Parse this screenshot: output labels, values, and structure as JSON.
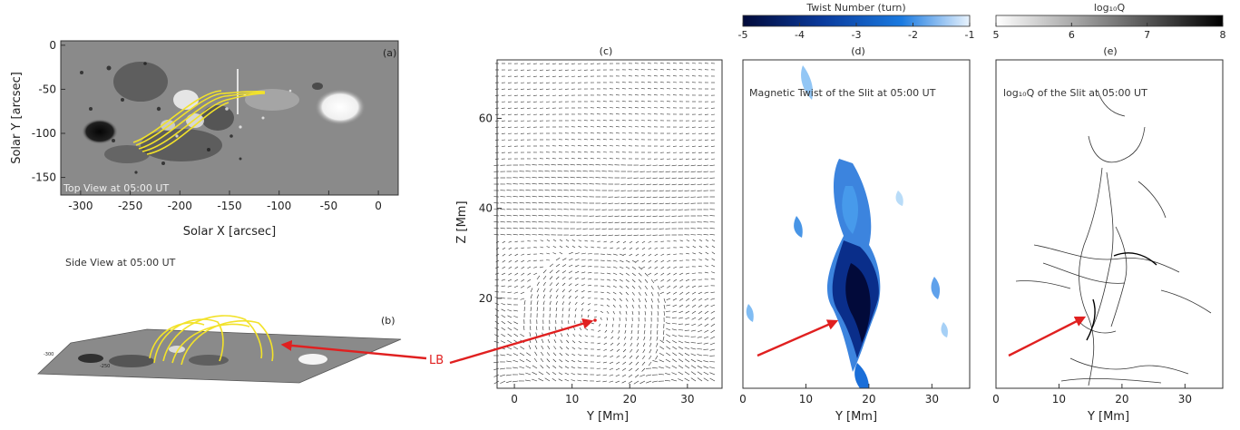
{
  "panel_a": {
    "letter": "(a)",
    "xlabel": "Solar X [arcsec]",
    "ylabel": "Solar Y [arcsec]",
    "caption": "Top View at 05:00 UT",
    "x_ticks": [
      "-300",
      "-250",
      "-200",
      "-150",
      "-100",
      "-50",
      "0"
    ],
    "y_ticks": [
      "0",
      "-50",
      "-100",
      "-150"
    ],
    "xlim": [
      -320,
      20
    ],
    "ylim": [
      -170,
      5
    ],
    "colors": {
      "loops": "#f2e22a",
      "slit": "#ffffff",
      "background": "#8a8a8a"
    }
  },
  "panel_b": {
    "letter": "(b)",
    "caption": "Side View at 05:00 UT",
    "label": "LB",
    "label_color": "#e02020"
  },
  "panel_c": {
    "letter": "(c)",
    "xlabel": "Y [Mm]",
    "ylabel": "Z [Mm]",
    "x_ticks": [
      "0",
      "10",
      "20",
      "30"
    ],
    "y_ticks": [
      "20",
      "40",
      "60"
    ],
    "xlim": [
      -3,
      36
    ],
    "ylim": [
      0,
      73
    ]
  },
  "panel_d": {
    "letter": "(d)",
    "inner_title": "Magnetic Twist of the Slit at 05:00 UT",
    "xlabel": "Y [Mm]",
    "x_ticks": [
      "0",
      "10",
      "20",
      "30"
    ],
    "colorbar": {
      "title": "Twist Number (turn)",
      "ticks": [
        "-5",
        "-4",
        "-3",
        "-2",
        "-1"
      ],
      "range": [
        -5,
        -1
      ],
      "colors": [
        "#020a3a",
        "#0a3a9c",
        "#1a7ae0",
        "#cde4fb"
      ]
    }
  },
  "panel_e": {
    "letter": "(e)",
    "inner_title": "log₁₀Q of the Slit at 05:00 UT",
    "xlabel": "Y [Mm]",
    "x_ticks": [
      "0",
      "10",
      "20",
      "30"
    ],
    "colorbar": {
      "title": "log₁₀Q",
      "ticks": [
        "5",
        "6",
        "7",
        "8"
      ],
      "range": [
        5,
        8
      ],
      "colors": [
        "#ffffff",
        "#000000"
      ]
    }
  },
  "arrow_color": "#e02020"
}
